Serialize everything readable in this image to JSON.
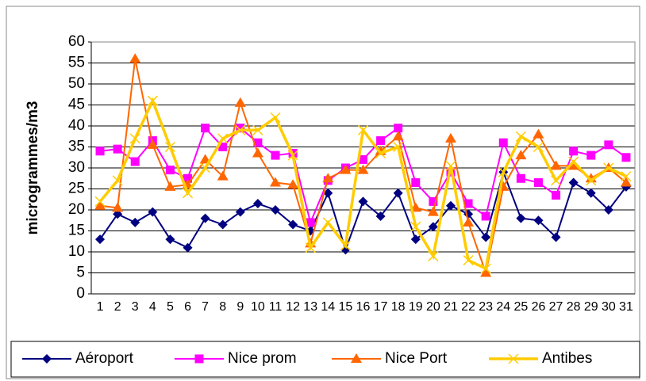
{
  "chart_data": {
    "type": "line",
    "ylabel": "microgrammes/m3",
    "categories": [
      "1",
      "2",
      "3",
      "4",
      "5",
      "6",
      "7",
      "8",
      "9",
      "10",
      "11",
      "12",
      "13",
      "14",
      "15",
      "16",
      "17",
      "18",
      "19",
      "20",
      "21",
      "22",
      "23",
      "24",
      "25",
      "26",
      "27",
      "28",
      "29",
      "30",
      "31"
    ],
    "series": [
      {
        "name": "Aéroport",
        "color": "#000080",
        "marker": "diamond",
        "values": [
          13,
          19,
          17,
          19.5,
          13,
          11,
          18,
          16.5,
          19.5,
          21.5,
          20,
          16.5,
          15,
          24,
          10.5,
          22,
          18.5,
          24,
          13,
          16,
          21,
          19,
          13.5,
          29,
          18,
          17.5,
          13.5,
          26.5,
          24,
          20,
          25.5
        ]
      },
      {
        "name": "Nice prom",
        "color": "#ff00ff",
        "marker": "square",
        "values": [
          34,
          34.5,
          31.5,
          36.5,
          29.5,
          27.5,
          39.5,
          35,
          39.5,
          36,
          33,
          33.5,
          17,
          27,
          30,
          32,
          36.5,
          39.5,
          26.5,
          22,
          29,
          21.5,
          18.5,
          36,
          27.5,
          26.5,
          23.5,
          34,
          33,
          35.5,
          32.5
        ]
      },
      {
        "name": "Nice Port",
        "color": "#ff6600",
        "marker": "triangle",
        "values": [
          21,
          20.5,
          56,
          35.5,
          25.5,
          26,
          32,
          28,
          45.5,
          33.5,
          26.5,
          26,
          12,
          27.5,
          29.5,
          29.5,
          34,
          37.5,
          20.5,
          19.5,
          37,
          17,
          5,
          25.5,
          33,
          38,
          30.5,
          30.5,
          27.5,
          30,
          26.5
        ]
      },
      {
        "name": "Antibes",
        "color": "#ffcc00",
        "marker": "x",
        "values": [
          22,
          27,
          37,
          46,
          35,
          24,
          30,
          37,
          39,
          39,
          42,
          33,
          11,
          17,
          11.5,
          39,
          33.5,
          35,
          16,
          9,
          30.5,
          8,
          6,
          29,
          37.5,
          35,
          27,
          31.5,
          27,
          30,
          28
        ]
      }
    ],
    "ylim": [
      0,
      60
    ],
    "yticks": [
      0,
      5,
      10,
      15,
      20,
      25,
      30,
      35,
      40,
      45,
      50,
      55,
      60
    ],
    "grid": true,
    "legend": "bottom"
  }
}
